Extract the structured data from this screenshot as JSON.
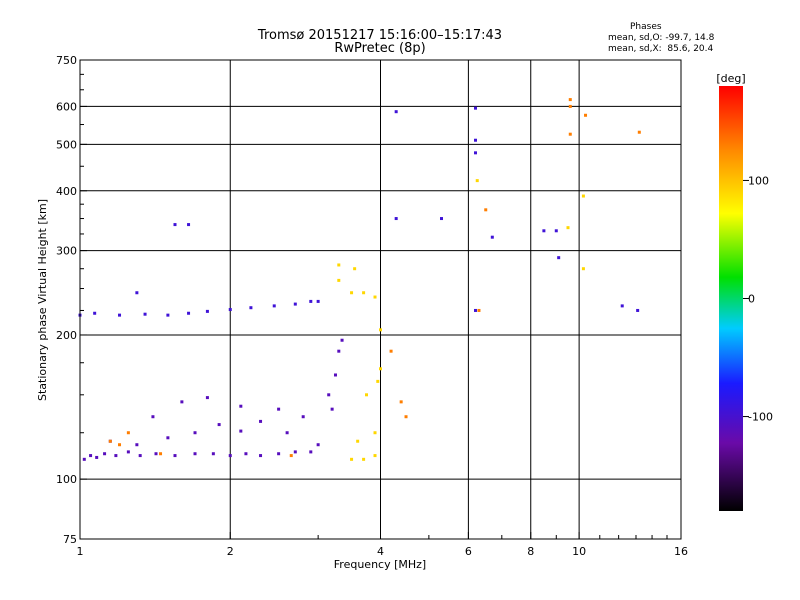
{
  "chart_data": {
    "type": "scatter",
    "title": "Tromsø 20151217 15:16:00–15:17:43",
    "subtitle": "RwPretec (8p)",
    "stats": {
      "heading": "Phases",
      "line1": "mean, sd,O: -99.7, 14.8",
      "line2": "mean, sd,X:  85.6, 20.4"
    },
    "xlabel": "Frequency [MHz]",
    "ylabel": "Stationary phase Virtual Height [km]",
    "x_scale": "log",
    "y_scale": "log",
    "xlim": [
      1,
      16
    ],
    "ylim": [
      75,
      750
    ],
    "x_ticks": [
      1,
      2,
      4,
      6,
      8,
      10,
      16
    ],
    "y_ticks": [
      75,
      100,
      200,
      300,
      400,
      500,
      600,
      750
    ],
    "grid_x": [
      2,
      4,
      6,
      8,
      10
    ],
    "grid_y": [
      100,
      200,
      300,
      400,
      500,
      600
    ],
    "grid": true,
    "colorbar": {
      "label": "[deg]",
      "range": [
        -180,
        180
      ],
      "ticks": [
        -100,
        0,
        100
      ]
    },
    "series": [
      {
        "values": [
          [
            1.02,
            110
          ],
          [
            1.05,
            112
          ],
          [
            1.08,
            111
          ],
          [
            1.12,
            113
          ],
          [
            1.18,
            112
          ],
          [
            1.25,
            114
          ],
          [
            1.32,
            112
          ],
          [
            1.42,
            113
          ],
          [
            1.55,
            112
          ],
          [
            1.7,
            113
          ],
          [
            1.85,
            113
          ],
          [
            2.0,
            112
          ],
          [
            2.15,
            113
          ],
          [
            2.3,
            112
          ],
          [
            2.5,
            113
          ],
          [
            2.7,
            114
          ],
          [
            2.9,
            114
          ],
          [
            1.15,
            120
          ],
          [
            1.3,
            118
          ],
          [
            1.5,
            122
          ],
          [
            1.7,
            125
          ],
          [
            1.9,
            130
          ],
          [
            2.1,
            126
          ],
          [
            2.3,
            132
          ],
          [
            2.6,
            125
          ],
          [
            2.8,
            135
          ],
          [
            3.0,
            118
          ],
          [
            1.6,
            145
          ],
          [
            1.8,
            148
          ],
          [
            2.1,
            142
          ],
          [
            2.5,
            140
          ],
          [
            1.4,
            135
          ],
          [
            3.15,
            150
          ],
          [
            3.25,
            165
          ],
          [
            3.3,
            185
          ],
          [
            3.35,
            195
          ],
          [
            3.2,
            140
          ]
        ],
        "phase": -110
      },
      {
        "values": [
          [
            1.0,
            220
          ],
          [
            1.07,
            222
          ],
          [
            1.2,
            220
          ],
          [
            1.35,
            221
          ],
          [
            1.5,
            220
          ],
          [
            1.65,
            222
          ],
          [
            1.8,
            224
          ],
          [
            2.0,
            226
          ],
          [
            2.2,
            228
          ],
          [
            2.45,
            230
          ],
          [
            2.7,
            232
          ],
          [
            2.9,
            235
          ],
          [
            3.0,
            235
          ],
          [
            1.55,
            340
          ],
          [
            1.65,
            340
          ],
          [
            1.3,
            245
          ],
          [
            4.3,
            585
          ],
          [
            4.3,
            350
          ],
          [
            6.2,
            595
          ],
          [
            6.2,
            510
          ],
          [
            6.2,
            480
          ],
          [
            5.3,
            350
          ],
          [
            6.7,
            320
          ],
          [
            6.2,
            225
          ],
          [
            13.1,
            225
          ],
          [
            12.2,
            230
          ],
          [
            9.1,
            290
          ],
          [
            8.5,
            330
          ],
          [
            9.0,
            330
          ]
        ],
        "phase": -95
      },
      {
        "values": [
          [
            3.3,
            280
          ],
          [
            3.3,
            260
          ],
          [
            3.55,
            275
          ],
          [
            3.5,
            245
          ],
          [
            3.7,
            245
          ],
          [
            3.9,
            240
          ],
          [
            3.5,
            110
          ],
          [
            3.7,
            110
          ],
          [
            3.9,
            112
          ],
          [
            3.75,
            150
          ],
          [
            3.95,
            160
          ],
          [
            4.0,
            170
          ],
          [
            4.0,
            205
          ],
          [
            3.9,
            125
          ],
          [
            3.6,
            120
          ],
          [
            6.25,
            420
          ],
          [
            9.5,
            335
          ],
          [
            10.2,
            390
          ],
          [
            10.2,
            275
          ]
        ],
        "phase": 90
      },
      {
        "values": [
          [
            1.15,
            120
          ],
          [
            1.2,
            118
          ],
          [
            1.45,
            113
          ],
          [
            1.25,
            125
          ],
          [
            2.65,
            112
          ],
          [
            9.6,
            620
          ],
          [
            9.6,
            600
          ],
          [
            9.6,
            525
          ],
          [
            10.3,
            575
          ],
          [
            13.2,
            530
          ],
          [
            6.5,
            365
          ],
          [
            6.3,
            225
          ],
          [
            4.4,
            145
          ],
          [
            4.5,
            135
          ],
          [
            4.2,
            185
          ]
        ],
        "phase": 130
      }
    ]
  }
}
